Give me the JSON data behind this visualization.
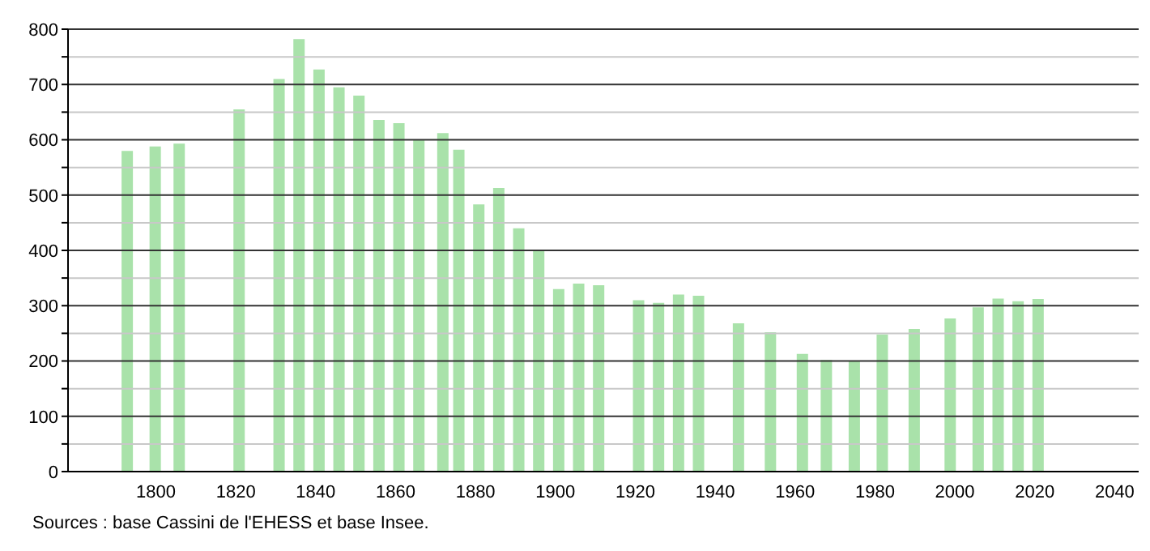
{
  "chart_data": {
    "type": "bar",
    "x": [
      1793,
      1800,
      1806,
      1821,
      1831,
      1836,
      1841,
      1846,
      1851,
      1856,
      1861,
      1866,
      1872,
      1876,
      1881,
      1886,
      1891,
      1896,
      1901,
      1906,
      1911,
      1921,
      1926,
      1931,
      1936,
      1946,
      1954,
      1962,
      1968,
      1975,
      1982,
      1990,
      1999,
      2006,
      2011,
      2016,
      2021
    ],
    "values": [
      580,
      588,
      593,
      655,
      710,
      782,
      727,
      695,
      680,
      636,
      630,
      600,
      612,
      582,
      483,
      513,
      440,
      400,
      330,
      340,
      337,
      310,
      305,
      320,
      318,
      268,
      252,
      213,
      202,
      200,
      248,
      258,
      277,
      297,
      313,
      308,
      312
    ],
    "color": "#a9e2aa",
    "xlim": [
      1778,
      2046
    ],
    "xticks": [
      1800,
      1820,
      1840,
      1860,
      1880,
      1900,
      1920,
      1940,
      1960,
      1980,
      2000,
      2020,
      2040
    ],
    "ylim": [
      0,
      800
    ],
    "yticks": [
      0,
      {
        "value": 50,
        "label": null
      },
      100,
      {
        "value": 150,
        "label": null
      },
      200,
      {
        "value": 250,
        "label": null
      },
      300,
      {
        "value": 350,
        "label": null
      },
      400,
      {
        "value": 450,
        "label": null
      },
      500,
      {
        "value": 550,
        "label": null
      },
      600,
      {
        "value": 650,
        "label": null
      },
      700,
      {
        "value": 750,
        "label": null
      },
      800
    ],
    "grid": "y",
    "annotations": [
      "Sources : base Cassini de l'EHESS et base Insee."
    ]
  }
}
